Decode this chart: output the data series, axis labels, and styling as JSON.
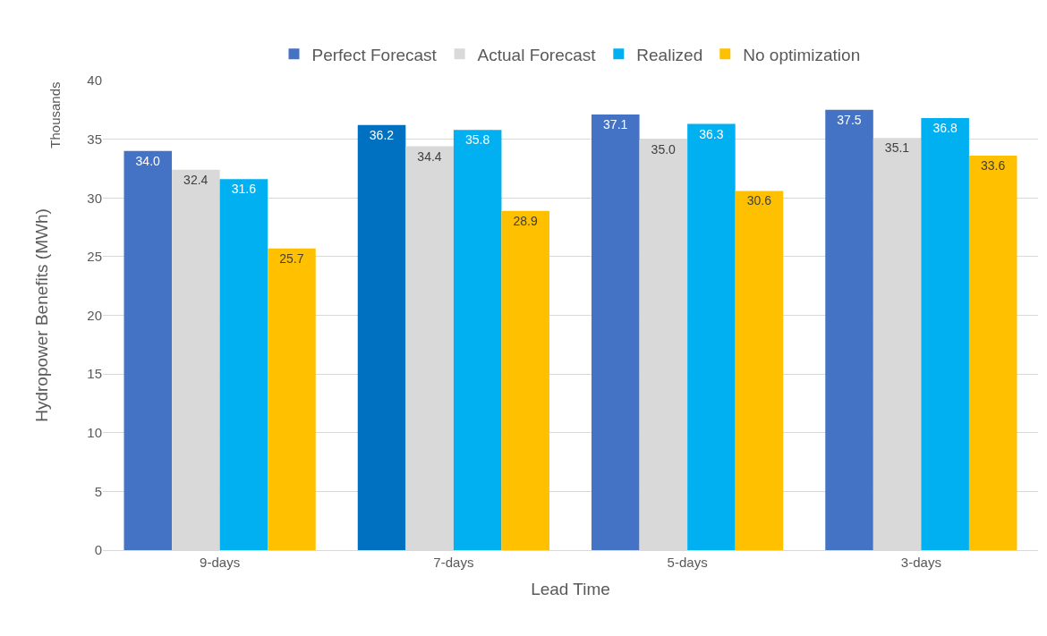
{
  "chart_data": {
    "type": "bar",
    "xlabel": "Lead Time",
    "ylabel": "Hydropower Benefits (MWh)",
    "annotations": [
      "Thousands"
    ],
    "categories": [
      "9-days",
      "7-days",
      "5-days",
      "3-days"
    ],
    "series": [
      {
        "name": "Perfect Forecast",
        "colors": [
          "#4472c4",
          "#0070c0",
          "#4472c4",
          "#4472c4"
        ],
        "values": [
          34.0,
          36.2,
          37.1,
          37.5
        ],
        "value_labels": [
          "34.0",
          "36.2",
          "37.1",
          "37.5"
        ]
      },
      {
        "name": "Actual Forecast",
        "color": "#d9d9d9",
        "values": [
          32.4,
          34.4,
          35.0,
          35.1
        ],
        "value_labels": [
          "32.4",
          "34.4",
          "35.0",
          "35.1"
        ]
      },
      {
        "name": "Realized",
        "color": "#00b0f0",
        "values": [
          31.6,
          35.8,
          36.3,
          36.8
        ],
        "value_labels": [
          "31.6",
          "35.8",
          "36.3",
          "36.8"
        ]
      },
      {
        "name": "No optimization",
        "color": "#ffc000",
        "values": [
          25.7,
          28.9,
          30.6,
          33.6
        ],
        "value_labels": [
          "25.7",
          "28.9",
          "30.6",
          "33.6"
        ]
      }
    ],
    "ylim": [
      0,
      40
    ],
    "yticks": [
      0,
      5,
      10,
      15,
      20,
      25,
      30,
      35,
      40
    ],
    "grid": "y",
    "legend": "top"
  }
}
